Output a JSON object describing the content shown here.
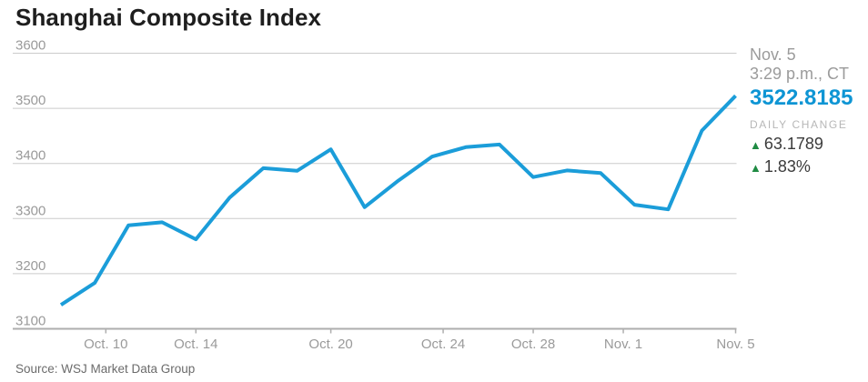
{
  "title": "Shanghai Composite Index",
  "quote": {
    "date": "Nov. 5",
    "time": "3:29 p.m., CT",
    "last": "3522.8185",
    "daily_change_label": "DAILY CHANGE",
    "change": "63.1789",
    "change_pct": "1.83%",
    "up_icon": "▲",
    "up_color": "#1f8b43",
    "value_color": "#0e95d4"
  },
  "source": "Source: WSJ Market Data Group",
  "chart_data": {
    "type": "line",
    "title": "Shanghai Composite Index",
    "line_color": "#1b9dd9",
    "gridline_color": "#cbcbcb",
    "axis_color": "#aeaeae",
    "tick_label_color": "#9a9a9a",
    "grid": "horizontal",
    "legend": "none",
    "ylim": [
      3100,
      3600
    ],
    "y_ticks": [
      3600,
      3500,
      3400,
      3300,
      3200,
      3100
    ],
    "x_tick_labels": [
      "Oct. 10",
      "Oct. 14",
      "Oct. 20",
      "Oct. 24",
      "Oct. 28",
      "Nov. 1",
      "Nov. 5"
    ],
    "x_tick_positions": [
      1.33,
      4,
      8,
      11.33,
      14,
      16.67,
      20
    ],
    "series": [
      {
        "name": "Shanghai Composite Index",
        "dates": [
          "Oct. 8",
          "Oct. 9",
          "Oct. 12",
          "Oct. 13",
          "Oct. 14",
          "Oct. 15",
          "Oct. 16",
          "Oct. 19",
          "Oct. 20",
          "Oct. 21",
          "Oct. 22",
          "Oct. 23",
          "Oct. 26",
          "Oct. 27",
          "Oct. 28",
          "Oct. 29",
          "Oct. 30",
          "Nov. 2",
          "Nov. 3",
          "Nov. 4",
          "Nov. 5"
        ],
        "values": [
          3143.36,
          3183.15,
          3287.66,
          3293.23,
          3262.44,
          3338.07,
          3391.35,
          3386.7,
          3425.52,
          3320.68,
          3368.74,
          3412.43,
          3429.58,
          3434.34,
          3375.2,
          3387.32,
          3382.56,
          3325.08,
          3316.7,
          3459.64,
          3522.8185
        ]
      }
    ]
  }
}
